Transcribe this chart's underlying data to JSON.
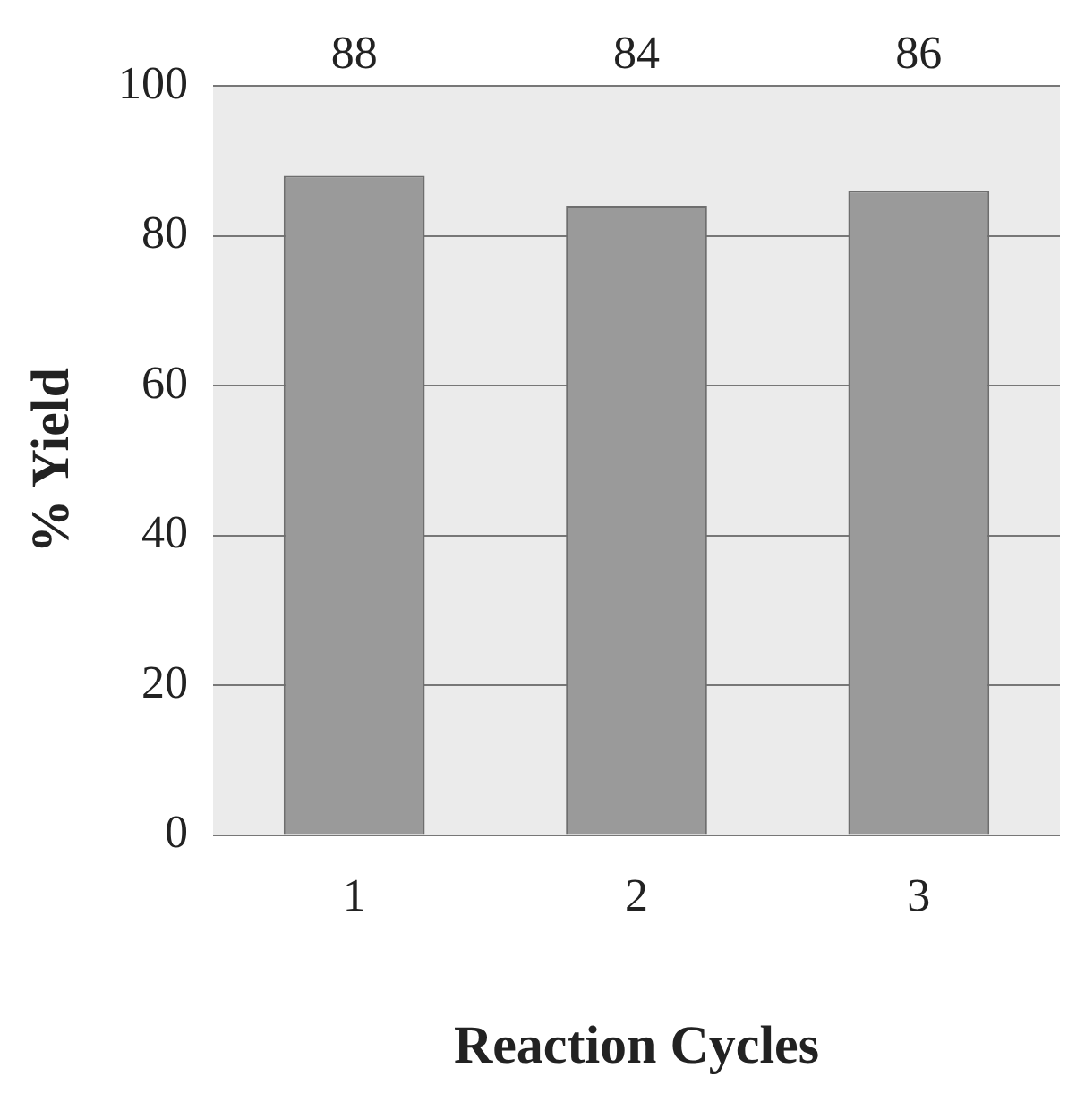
{
  "chart_data": {
    "type": "bar",
    "xlabel": "Reaction Cycles",
    "ylabel": "% Yield",
    "categories": [
      "1",
      "2",
      "3"
    ],
    "values": [
      88,
      84,
      86
    ],
    "color": "#9a9a9a",
    "ylim": [
      0,
      100
    ],
    "yticks": [
      0,
      20,
      40,
      60,
      80,
      100
    ],
    "grid": "y",
    "data_labels": true,
    "legend": false
  }
}
